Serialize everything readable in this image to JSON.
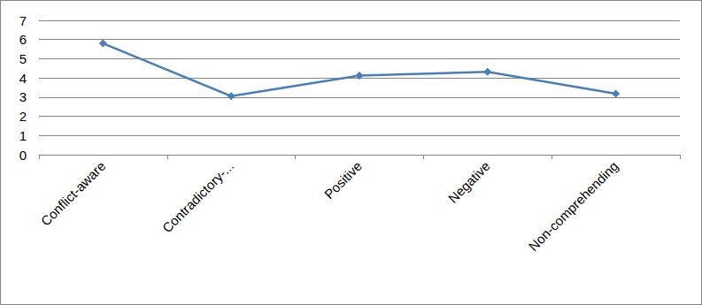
{
  "chart_data": {
    "type": "line",
    "categories": [
      "Conflict-aware",
      "Contradictory-...",
      "Positive",
      "Negative",
      "Non-comprehending"
    ],
    "values": [
      5.8,
      3.05,
      4.12,
      4.32,
      3.18
    ],
    "color": "#4a7ebb",
    "marker": "diamond",
    "line_style": "solid",
    "ylim": [
      0,
      7
    ],
    "yticks": [
      0,
      1,
      2,
      3,
      4,
      5,
      6,
      7
    ],
    "grid": true
  }
}
